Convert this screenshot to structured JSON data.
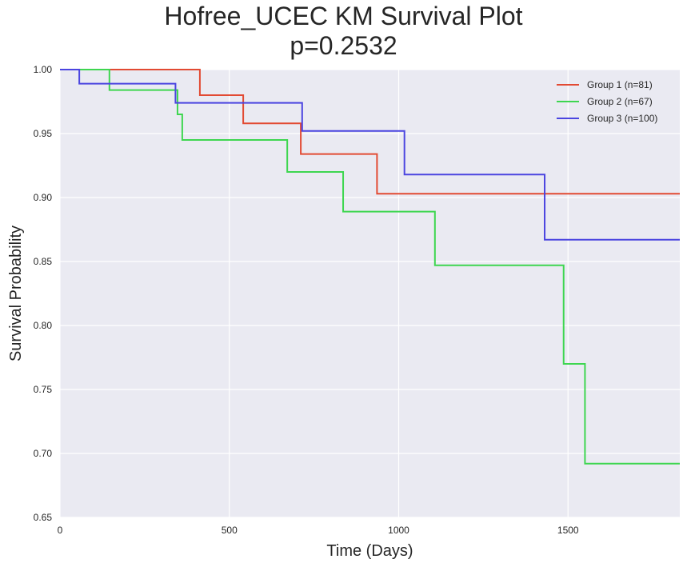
{
  "chart_data": {
    "type": "line",
    "step": true,
    "title": "Hofree_UCEC KM Survival Plot",
    "subtitle": "p=0.2532",
    "xlabel": "Time (Days)",
    "ylabel": "Survival Probability",
    "xlim": [
      0,
      1830
    ],
    "ylim": [
      0.65,
      1.0
    ],
    "xticks": [
      0,
      500,
      1000,
      1500
    ],
    "xtick_labels": [
      "0",
      "500",
      "1000",
      "1500"
    ],
    "yticks": [
      0.65,
      0.7,
      0.75,
      0.8,
      0.85,
      0.9,
      0.95,
      1.0
    ],
    "ytick_labels": [
      "0.65",
      "0.70",
      "0.75",
      "0.80",
      "0.85",
      "0.90",
      "0.95",
      "1.00"
    ],
    "grid": true,
    "background": "#eaeaf2",
    "legend_position": "top-right",
    "series": [
      {
        "name": "Group 1 (n=81)",
        "color": "#e24a33",
        "x": [
          0,
          413,
          541,
          711,
          936,
          1830
        ],
        "y": [
          1.0,
          0.98,
          0.958,
          0.934,
          0.903,
          0.903
        ]
      },
      {
        "name": "Group 2 (n=67)",
        "color": "#3ed650",
        "x": [
          0,
          146,
          347,
          361,
          671,
          836,
          1107,
          1487,
          1550,
          1830
        ],
        "y": [
          1.0,
          0.984,
          0.965,
          0.945,
          0.92,
          0.889,
          0.847,
          0.77,
          0.692,
          0.692
        ]
      },
      {
        "name": "Group 3 (n=100)",
        "color": "#4b45e0",
        "x": [
          0,
          57,
          341,
          715,
          1017,
          1431,
          1830
        ],
        "y": [
          1.0,
          0.989,
          0.974,
          0.952,
          0.918,
          0.867,
          0.867
        ]
      }
    ]
  }
}
